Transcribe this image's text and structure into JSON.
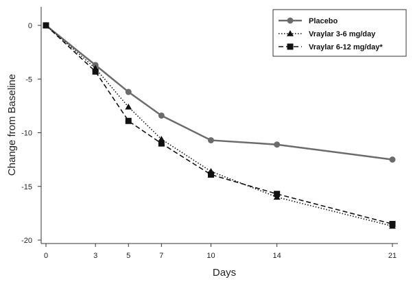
{
  "chart_data": {
    "type": "line",
    "xlabel": "Days",
    "ylabel": "Change from Baseline",
    "xlim": [
      0,
      21
    ],
    "ylim": [
      -20,
      0
    ],
    "x_ticks": [
      0,
      3,
      5,
      7,
      10,
      14,
      21
    ],
    "y_ticks": [
      0,
      -5,
      -10,
      -15,
      -20
    ],
    "x": [
      0,
      3,
      5,
      7,
      10,
      14,
      21
    ],
    "grid": false,
    "legend_position": "top-right",
    "series": [
      {
        "name": "Placebo",
        "values": [
          0,
          -3.7,
          -6.2,
          -8.4,
          -10.7,
          -11.1,
          -12.5
        ],
        "color": "#6b6b6b",
        "marker": "circle",
        "line_style": "solid"
      },
      {
        "name": "Vraylar 3-6 mg/day",
        "values": [
          0,
          -4.0,
          -7.6,
          -10.6,
          -13.6,
          -16.0,
          -18.7
        ],
        "color": "#111111",
        "marker": "triangle",
        "line_style": "dotted"
      },
      {
        "name": "Vraylar 6-12 mg/day*",
        "values": [
          0,
          -4.3,
          -8.9,
          -11.0,
          -13.9,
          -15.7,
          -18.5
        ],
        "color": "#111111",
        "marker": "square",
        "line_style": "dashed"
      }
    ]
  }
}
